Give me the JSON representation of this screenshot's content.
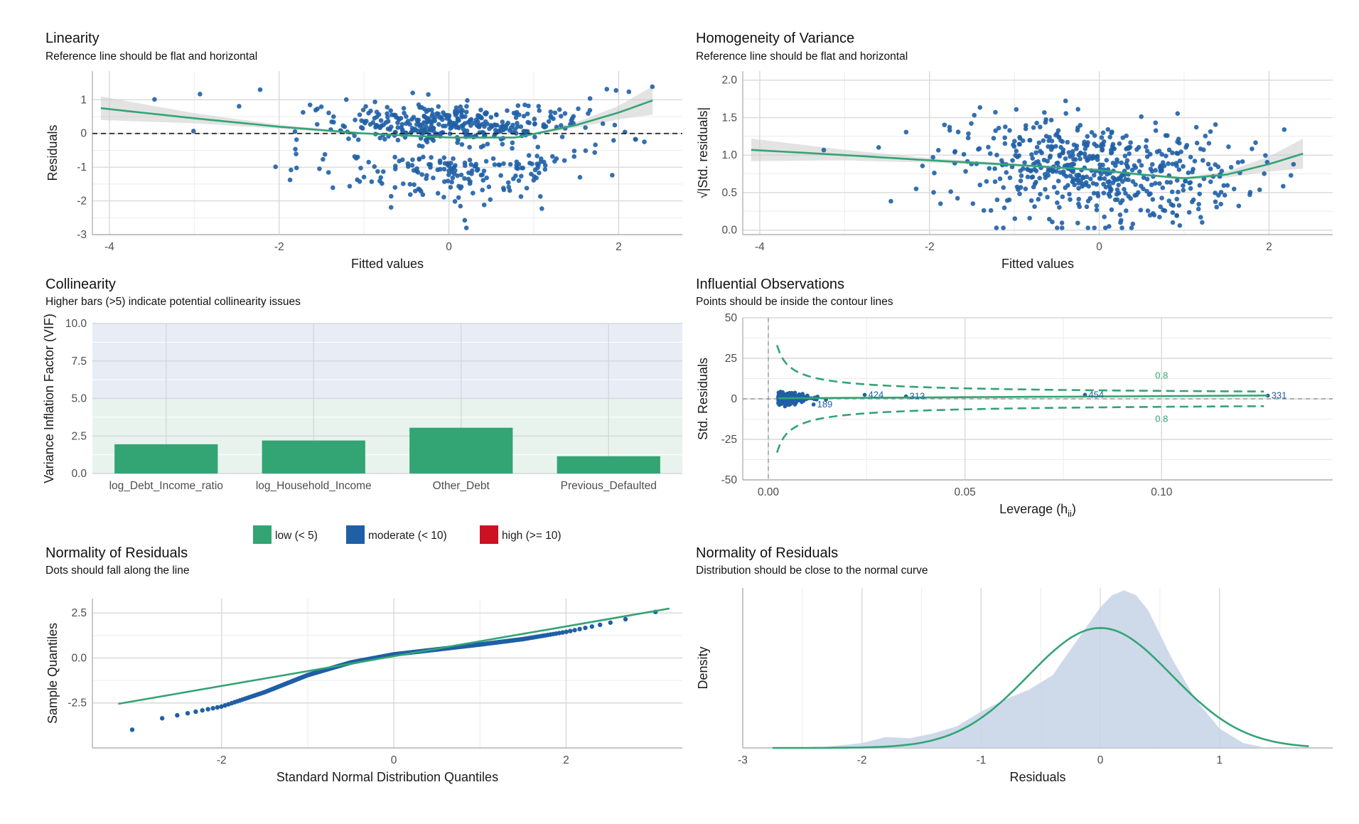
{
  "colors": {
    "point": "#1f5fa6",
    "green": "#33a474",
    "band": "#cccccc",
    "low": "#33a474",
    "moderate": "#1f5fa6",
    "high": "#cc1122",
    "density_fill": "#c6d4e6"
  },
  "chart_data": [
    {
      "id": "linearity",
      "type": "scatter",
      "title": "Linearity",
      "subtitle": "Reference line should be flat and horizontal",
      "xlabel": "Fitted values",
      "ylabel": "Residuals",
      "xlim": [
        -4.2,
        2.75
      ],
      "ylim": [
        -3.0,
        1.85
      ],
      "xticks": [
        -4,
        -2,
        0,
        2
      ],
      "yticks": [
        -3,
        -2,
        -1,
        0,
        1
      ],
      "reference_line_y": 0,
      "n_points": 560,
      "smooth": {
        "x": [
          -4.1,
          -3.0,
          -2.0,
          -1.0,
          0.0,
          0.8,
          1.5,
          2.0,
          2.4
        ],
        "y": [
          0.75,
          0.45,
          0.2,
          0.0,
          -0.12,
          -0.12,
          0.25,
          0.62,
          0.98
        ]
      },
      "band_halfwidth": {
        "x": [
          -4.1,
          -3.0,
          -2.0,
          -1.0,
          0.0,
          1.0,
          1.5,
          2.0,
          2.4
        ],
        "w": [
          0.35,
          0.15,
          0.06,
          0.03,
          0.03,
          0.03,
          0.08,
          0.2,
          0.42
        ]
      }
    },
    {
      "id": "homogeneity",
      "type": "scatter",
      "title": "Homogeneity of Variance",
      "subtitle": "Reference line should be flat and horizontal",
      "xlabel": "Fitted values",
      "ylabel": "√|Std. residuals|",
      "xlim": [
        -4.2,
        2.75
      ],
      "ylim": [
        -0.06,
        2.12
      ],
      "xticks": [
        -4,
        -2,
        0,
        2
      ],
      "yticks": [
        0.0,
        0.5,
        1.0,
        1.5,
        2.0
      ],
      "ytick_labels": [
        "0.0",
        "0.5",
        "1.0",
        "1.5",
        "2.0"
      ],
      "n_points": 560,
      "smooth": {
        "x": [
          -4.1,
          -3.0,
          -2.0,
          -1.0,
          0.0,
          0.5,
          1.0,
          1.5,
          2.0,
          2.4
        ],
        "y": [
          1.07,
          1.0,
          0.93,
          0.87,
          0.8,
          0.74,
          0.69,
          0.74,
          0.88,
          1.02
        ]
      },
      "band_halfwidth": {
        "x": [
          -4.1,
          -3.0,
          -2.0,
          -1.0,
          0.0,
          1.0,
          1.5,
          2.0,
          2.4
        ],
        "w": [
          0.15,
          0.07,
          0.03,
          0.02,
          0.02,
          0.02,
          0.04,
          0.1,
          0.2
        ]
      }
    },
    {
      "id": "collinearity",
      "type": "bar",
      "title": "Collinearity",
      "subtitle": "Higher bars (>5) indicate potential collinearity issues",
      "xlabel": "",
      "ylabel": "Variance Inflation Factor (VIF)",
      "categories": [
        "log_Debt_Income_ratio",
        "log_Household_Income",
        "Other_Debt",
        "Previous_Defaulted"
      ],
      "values": [
        1.95,
        2.2,
        3.05,
        1.15
      ],
      "ylim": [
        0,
        10
      ],
      "yticks": [
        0.0,
        2.5,
        5.0,
        7.5,
        10.0
      ],
      "ytick_labels": [
        "0.0",
        "2.5",
        "5.0",
        "7.5",
        "10.0"
      ],
      "zones": [
        {
          "from": 0,
          "to": 5,
          "color": "#e8f3ee"
        },
        {
          "from": 5,
          "to": 10,
          "color": "#e8ecf5"
        }
      ],
      "legend": [
        {
          "label": "low (< 5)",
          "color": "#33a474"
        },
        {
          "label": "moderate (< 10)",
          "color": "#1f5fa6"
        },
        {
          "label": "high (>= 10)",
          "color": "#cc1122"
        }
      ]
    },
    {
      "id": "influential",
      "type": "scatter",
      "title": "Influential Observations",
      "subtitle": "Points should be inside the contour lines",
      "xlabel": "Leverage (h",
      "xlabel_sub": "ii",
      "xlabel_end": ")",
      "ylabel": "Std. Residuals",
      "xlim": [
        -0.0065,
        0.1435
      ],
      "ylim": [
        -50,
        50
      ],
      "xticks": [
        0.0,
        0.05,
        0.1
      ],
      "xtick_labels": [
        "0.00",
        "0.05",
        "0.10"
      ],
      "yticks": [
        -50,
        -25,
        0,
        25,
        50
      ],
      "contour_label": "0.8",
      "labels": [
        {
          "id": "424",
          "x": 0.0245,
          "y": 2.5
        },
        {
          "id": "313",
          "x": 0.035,
          "y": 1.5
        },
        {
          "id": "454",
          "x": 0.0805,
          "y": 2.5
        },
        {
          "id": "189",
          "x": 0.0115,
          "y": -3.5
        },
        {
          "id": "331",
          "x": 0.127,
          "y": 2.0
        }
      ]
    },
    {
      "id": "qq",
      "type": "scatter",
      "title": "Normality of Residuals",
      "subtitle": "Dots should fall along the line",
      "xlabel": "Standard Normal Distribution Quantiles",
      "ylabel": "Sample Quantiles",
      "xlim": [
        -3.5,
        3.35
      ],
      "ylim": [
        -5.0,
        3.3
      ],
      "xticks": [
        -2,
        0,
        2
      ],
      "yticks": [
        -2.5,
        0.0,
        2.5
      ],
      "ytick_labels": [
        "-2.5",
        "0.0",
        "2.5"
      ],
      "reference_line": {
        "x": [
          -3.2,
          3.2
        ],
        "y": [
          -2.55,
          2.75
        ]
      }
    },
    {
      "id": "density",
      "type": "area",
      "title": "Normality of Residuals",
      "subtitle": "Distribution should be close to the normal curve",
      "xlabel": "Residuals",
      "ylabel": "Density",
      "xlim": [
        -3.0,
        1.95
      ],
      "ylim": [
        0,
        0.66
      ],
      "xticks": [
        -3,
        -2,
        -1,
        0,
        1
      ],
      "density": {
        "x": [
          -2.4,
          -2.0,
          -1.8,
          -1.6,
          -1.4,
          -1.2,
          -1.0,
          -0.8,
          -0.6,
          -0.4,
          -0.2,
          0.0,
          0.1,
          0.2,
          0.3,
          0.4,
          0.5,
          0.6,
          0.8,
          1.0,
          1.2,
          1.4
        ],
        "y": [
          0.0,
          0.02,
          0.045,
          0.04,
          0.06,
          0.09,
          0.15,
          0.2,
          0.24,
          0.3,
          0.44,
          0.58,
          0.63,
          0.65,
          0.63,
          0.57,
          0.47,
          0.37,
          0.2,
          0.08,
          0.02,
          0.0
        ]
      },
      "normal": {
        "mean": 0.0,
        "sd": 0.6,
        "xrange": [
          -2.75,
          1.75
        ]
      }
    }
  ]
}
